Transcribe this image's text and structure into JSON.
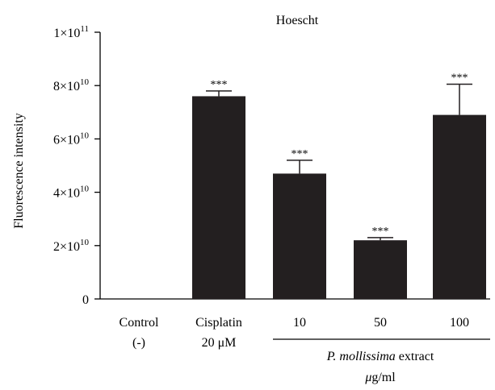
{
  "chart_data": {
    "type": "bar",
    "title": "Hoescht",
    "ylabel": "Fluorescence intensity",
    "ylim": [
      0,
      100000000000.0
    ],
    "yticks": [
      {
        "value": 0,
        "mantissa": "0",
        "exp": ""
      },
      {
        "value": 20000000000.0,
        "mantissa": "2×10",
        "exp": "10"
      },
      {
        "value": 40000000000.0,
        "mantissa": "4×10",
        "exp": "10"
      },
      {
        "value": 60000000000.0,
        "mantissa": "6×10",
        "exp": "10"
      },
      {
        "value": 80000000000.0,
        "mantissa": "8×10",
        "exp": "10"
      },
      {
        "value": 100000000000.0,
        "mantissa": "1×10",
        "exp": "11"
      }
    ],
    "categories": [
      {
        "line1": "Control",
        "line2": "(-)"
      },
      {
        "line1": "Cisplatin",
        "line2": "20 μM"
      },
      {
        "line1": "10",
        "line2": ""
      },
      {
        "line1": "50",
        "line2": ""
      },
      {
        "line1": "100",
        "line2": ""
      }
    ],
    "values": [
      0,
      76000000000.0,
      47000000000.0,
      22000000000.0,
      69000000000.0
    ],
    "errors": [
      0,
      2000000000.0,
      5000000000.0,
      1000000000.0,
      11500000000.0
    ],
    "significance": [
      "",
      "***",
      "***",
      "***",
      "***"
    ],
    "group_label": {
      "species": "P. mollissima",
      "suffix": " extract",
      "unit_prefix": "μ",
      "unit": "g/ml"
    },
    "bar_color": "#231f20"
  }
}
